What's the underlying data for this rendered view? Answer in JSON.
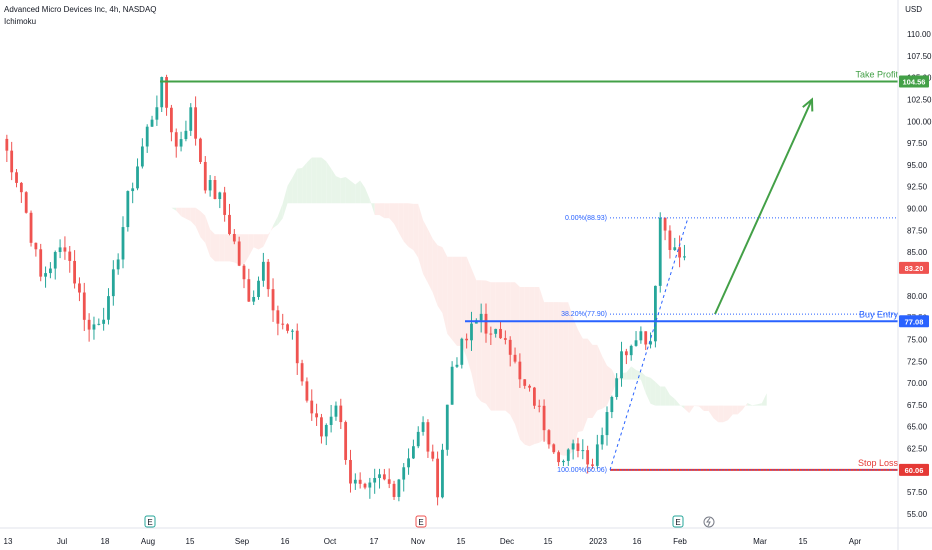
{
  "header": {
    "title": "Advanced Micro Devices Inc, 4h, NASDAQ",
    "indicator": "Ichimoku",
    "currency": "USD"
  },
  "colors": {
    "up": "#26a69a",
    "down": "#ef5350",
    "take_profit": "#43a047",
    "buy_entry": "#2962ff",
    "stop_loss": "#e53935",
    "cloud_bull": "#e8f5e9",
    "cloud_bear": "#fdecea",
    "last_price": "#ef5350"
  },
  "chart_data": {
    "type": "candlestick",
    "ylim": [
      54,
      112
    ],
    "y_ticks": [
      55,
      57.5,
      60,
      62.5,
      65,
      67.5,
      70,
      72.5,
      75,
      77.5,
      80,
      85,
      87.5,
      90,
      92.5,
      95,
      97.5,
      100,
      102.5,
      105,
      107.5,
      110
    ],
    "y_tick_labels": [
      "55.00",
      "57.50",
      "60.00",
      "62.50",
      "65.00",
      "67.50",
      "70.00",
      "72.50",
      "75.00",
      "77.50",
      "80.00",
      "85.00",
      "87.50",
      "90.00",
      "92.50",
      "95.00",
      "97.50",
      "100.00",
      "102.50",
      "105.00",
      "107.50",
      "110.00"
    ],
    "x_ticks": [
      "13",
      "Jul",
      "18",
      "Aug",
      "15",
      "Sep",
      "16",
      "Oct",
      "17",
      "Nov",
      "15",
      "Dec",
      "15",
      "2023",
      "16",
      "Feb",
      "Mar",
      "15",
      "Apr"
    ],
    "price_path": [
      {
        "t": 0,
        "p": 98
      },
      {
        "t": 4,
        "p": 92
      },
      {
        "t": 8,
        "p": 82
      },
      {
        "t": 13,
        "p": 86
      },
      {
        "t": 18,
        "p": 76
      },
      {
        "t": 22,
        "p": 79
      },
      {
        "t": 26,
        "p": 91
      },
      {
        "t": 30,
        "p": 99
      },
      {
        "t": 33,
        "p": 104
      },
      {
        "t": 36,
        "p": 97
      },
      {
        "t": 39,
        "p": 101
      },
      {
        "t": 42,
        "p": 93
      },
      {
        "t": 45,
        "p": 91
      },
      {
        "t": 48,
        "p": 86
      },
      {
        "t": 51,
        "p": 79
      },
      {
        "t": 54,
        "p": 84
      },
      {
        "t": 57,
        "p": 77
      },
      {
        "t": 60,
        "p": 75
      },
      {
        "t": 63,
        "p": 68
      },
      {
        "t": 66,
        "p": 64
      },
      {
        "t": 69,
        "p": 68
      },
      {
        "t": 72,
        "p": 59
      },
      {
        "t": 75,
        "p": 57
      },
      {
        "t": 78,
        "p": 59
      },
      {
        "t": 81,
        "p": 58
      },
      {
        "t": 84,
        "p": 62
      },
      {
        "t": 87,
        "p": 65
      },
      {
        "t": 90,
        "p": 58
      },
      {
        "t": 93,
        "p": 72
      },
      {
        "t": 96,
        "p": 75
      },
      {
        "t": 99,
        "p": 78
      },
      {
        "t": 101,
        "p": 75
      },
      {
        "t": 104,
        "p": 76
      },
      {
        "t": 107,
        "p": 70
      },
      {
        "t": 110,
        "p": 68
      },
      {
        "t": 113,
        "p": 64
      },
      {
        "t": 116,
        "p": 61
      },
      {
        "t": 119,
        "p": 63
      },
      {
        "t": 122,
        "p": 61
      },
      {
        "t": 125,
        "p": 67
      },
      {
        "t": 128,
        "p": 73
      },
      {
        "t": 131,
        "p": 76
      },
      {
        "t": 134,
        "p": 75
      },
      {
        "t": 136,
        "p": 89
      },
      {
        "t": 139,
        "p": 85
      },
      {
        "t": 141,
        "p": 84
      }
    ],
    "levels": {
      "take_profit": {
        "label": "Take Profit",
        "value": 104.56,
        "tag": "104.56"
      },
      "buy_entry": {
        "label": "Buy Entry",
        "value": 77.08,
        "tag": "77.08"
      },
      "stop_loss": {
        "label": "Stop Loss",
        "value": 60.06,
        "tag": "60.06"
      },
      "last_price": {
        "value": 83.2,
        "tag": "83.20"
      }
    },
    "fibonacci": [
      {
        "label": "0.00%(88.93)",
        "value": 88.93
      },
      {
        "label": "38.20%(77.90)",
        "value": 77.9
      },
      {
        "label": "100.00%(60.06)",
        "value": 60.06
      }
    ],
    "projection_arrow": {
      "from": 77.9,
      "to": 102.5
    },
    "earnings_markers": [
      {
        "label": "E",
        "kind": "positive"
      },
      {
        "label": "E",
        "kind": "negative"
      },
      {
        "label": "E",
        "kind": "positive"
      }
    ]
  }
}
